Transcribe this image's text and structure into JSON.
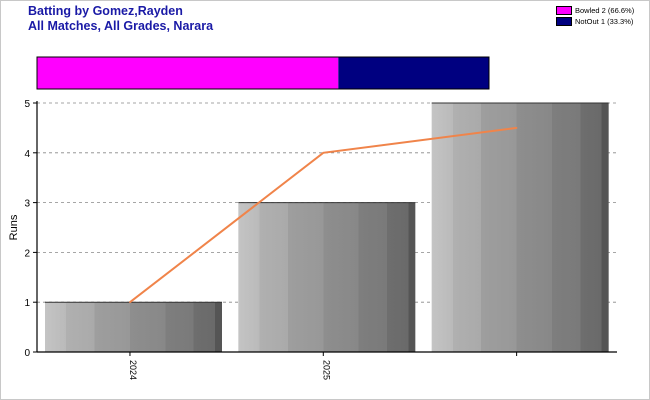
{
  "title_lines": [
    "Batting by Gomez,Rayden",
    "All Matches, All Grades, Narara"
  ],
  "legend": [
    {
      "label": "Bowled 2 (66.6%)",
      "color": "#ff00ff"
    },
    {
      "label": "NotOut 1 (33.3%)",
      "color": "#000080"
    }
  ],
  "chart_data": [
    {
      "type": "bar",
      "categories": [
        "2024",
        "2025",
        ""
      ],
      "values": [
        1,
        3,
        5
      ],
      "ylabel": "Runs",
      "xlabel": "",
      "ylim": [
        0,
        5
      ],
      "yticks": [
        0,
        1,
        2,
        3,
        4,
        5
      ],
      "grid": true,
      "line_series": {
        "color": "#f0844a",
        "values": [
          1,
          4,
          4.5
        ]
      }
    },
    {
      "type": "bar",
      "stacked_horizontal": true,
      "series": [
        {
          "name": "Bowled",
          "value": 2,
          "color": "#ff00ff"
        },
        {
          "name": "NotOut",
          "value": 1,
          "color": "#000080"
        }
      ]
    }
  ]
}
